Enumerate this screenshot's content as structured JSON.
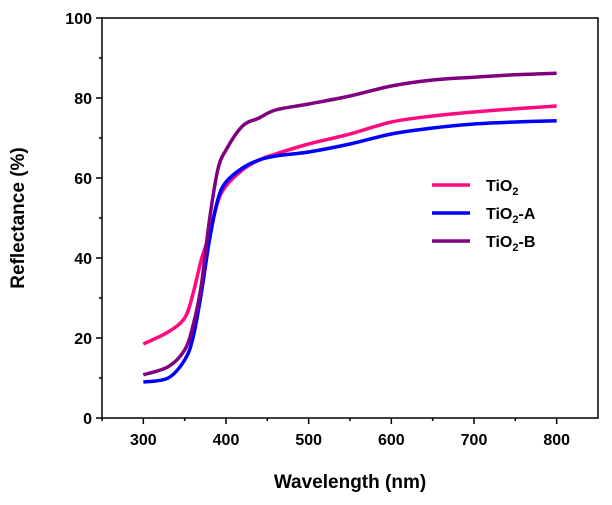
{
  "chart_data": {
    "type": "line",
    "title": "",
    "xlabel": "Wavelength (nm)",
    "ylabel": "Reflectance (%)",
    "xlim": [
      250,
      850
    ],
    "ylim": [
      0,
      100
    ],
    "xticks": [
      300,
      400,
      500,
      600,
      700,
      800
    ],
    "yticks": [
      0,
      20,
      40,
      60,
      80,
      100
    ],
    "grid": false,
    "legend_position": "center-right",
    "x": [
      300,
      330,
      350,
      360,
      370,
      380,
      390,
      400,
      420,
      440,
      460,
      500,
      550,
      600,
      650,
      700,
      750,
      800
    ],
    "series": [
      {
        "name": "TiO2",
        "sub": "2",
        "base": "TiO",
        "suffix": "",
        "color": "#ff0a80",
        "values": [
          18.5,
          21.5,
          25,
          31,
          39.5,
          46,
          54,
          58,
          62,
          64.5,
          66,
          68.5,
          71,
          74,
          75.5,
          76.5,
          77.3,
          78
        ]
      },
      {
        "name": "TiO2-A",
        "sub": "2",
        "base": "TiO",
        "suffix": "-A",
        "color": "#0000ff",
        "values": [
          9,
          10,
          14.5,
          20,
          31,
          44.5,
          54.5,
          59,
          62.5,
          64.5,
          65.5,
          66.5,
          68.5,
          71,
          72.5,
          73.5,
          74,
          74.3
        ]
      },
      {
        "name": "TiO2-B",
        "sub": "2",
        "base": "TiO",
        "suffix": "-B",
        "color": "#800080",
        "values": [
          10.8,
          12.8,
          17,
          23,
          33,
          49.5,
          62,
          67,
          73,
          75,
          77,
          78.5,
          80.5,
          83,
          84.5,
          85.2,
          85.8,
          86.2
        ]
      }
    ]
  }
}
